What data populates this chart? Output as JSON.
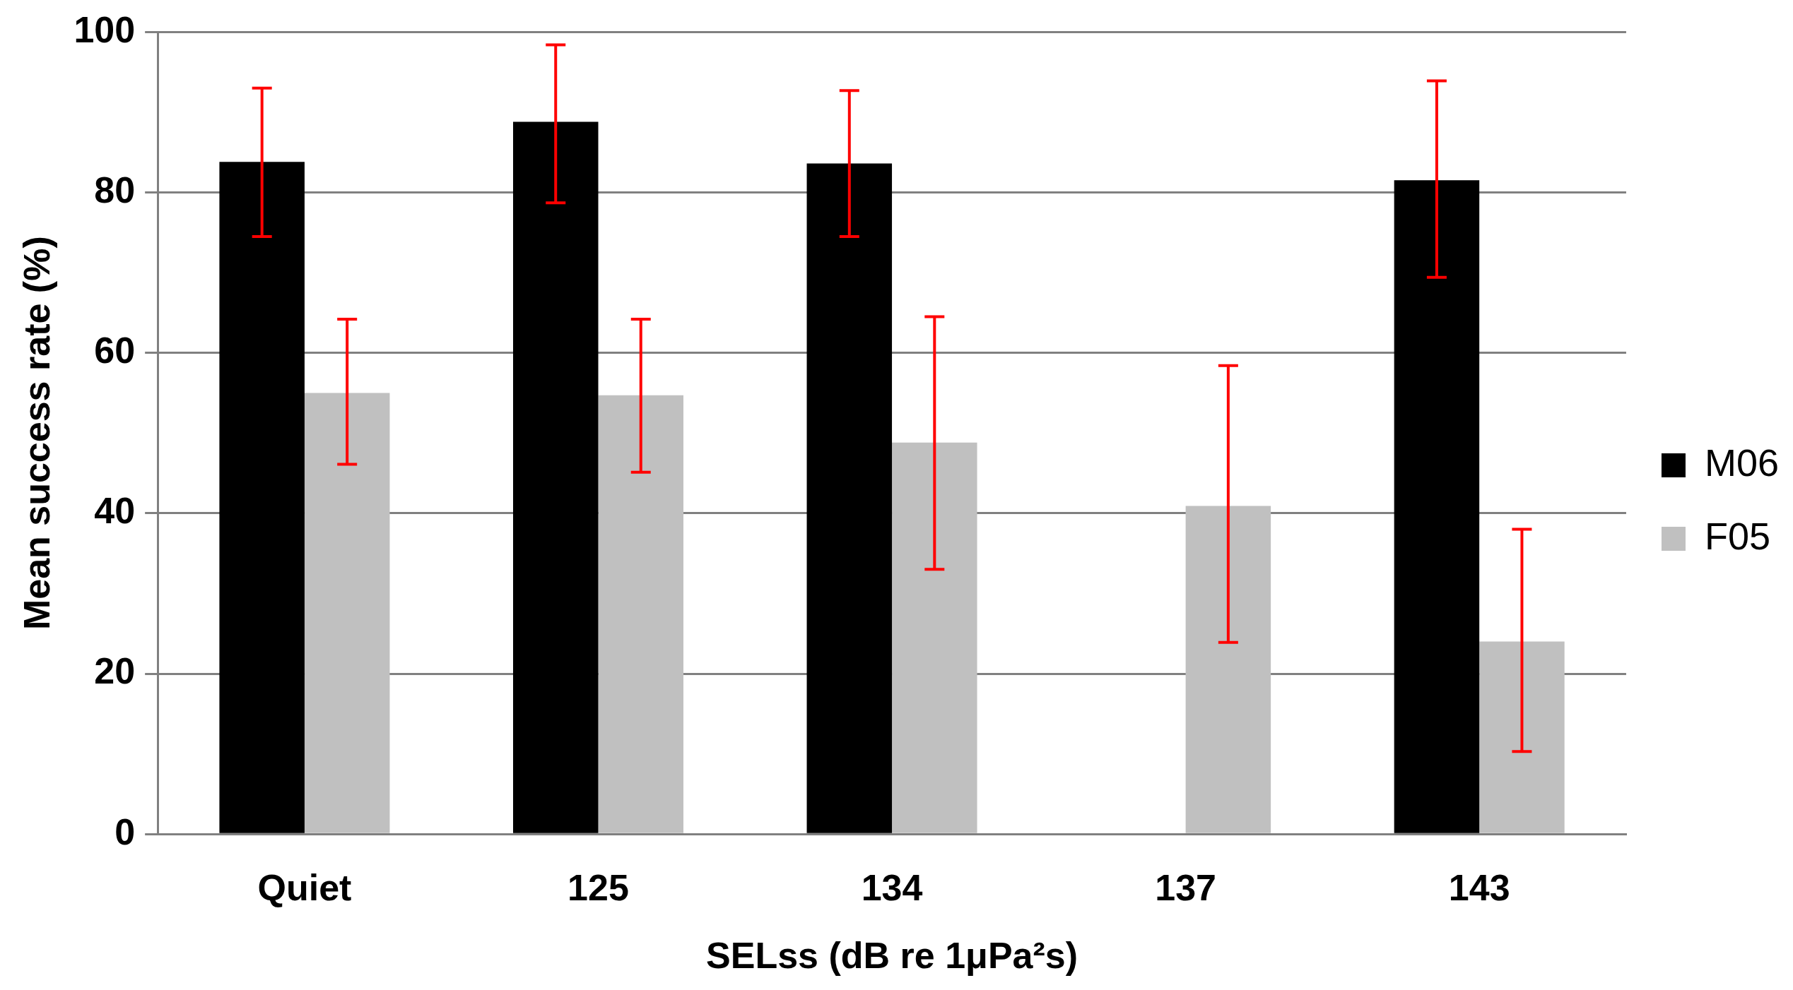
{
  "chart_data": {
    "type": "bar",
    "xlabel": "SELss (dB re 1μPa²s)",
    "ylabel": "Mean success rate (%)",
    "categories": [
      "Quiet",
      "125",
      "134",
      "137",
      "143"
    ],
    "series": [
      {
        "name": "M06",
        "color": "#000000",
        "values": [
          83.8,
          88.8,
          83.6,
          null,
          81.5
        ],
        "errors": [
          [
            74.5,
            93.0
          ],
          [
            78.7,
            98.4
          ],
          [
            74.5,
            92.7
          ],
          null,
          [
            69.4,
            93.9
          ]
        ]
      },
      {
        "name": "F05",
        "color": "#c0c0c0",
        "values": [
          55.0,
          54.7,
          48.8,
          40.9,
          24.0
        ],
        "errors": [
          [
            46.1,
            64.2
          ],
          [
            45.1,
            64.2
          ],
          [
            33.0,
            64.5
          ],
          [
            23.9,
            58.4
          ],
          [
            10.3,
            38.0
          ]
        ]
      }
    ],
    "ylim": [
      0,
      100
    ],
    "yticks": [
      0,
      20,
      40,
      60,
      80,
      100
    ],
    "grid": "y",
    "legend": "right"
  }
}
